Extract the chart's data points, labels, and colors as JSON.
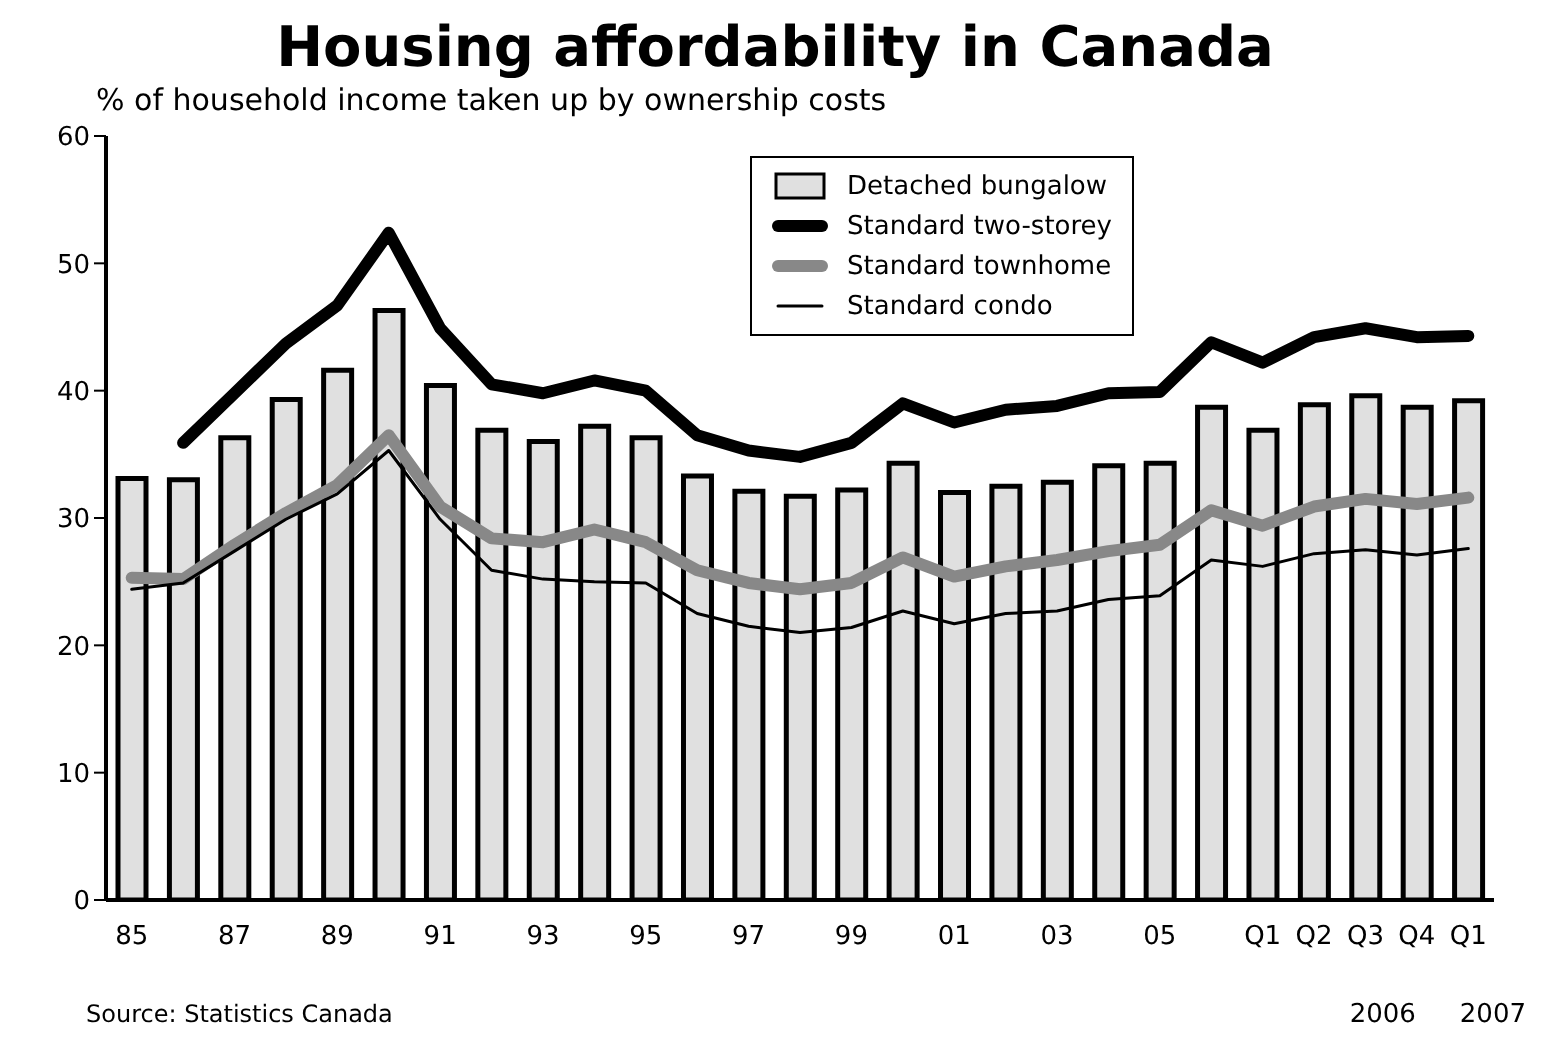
{
  "chart_data": {
    "type": "bar",
    "title": "Housing affordability in Canada",
    "subtitle": "% of household income taken up by ownership costs",
    "categories": [
      "85",
      null,
      "87",
      null,
      "89",
      null,
      "91",
      null,
      "93",
      null,
      "95",
      null,
      "97",
      null,
      "99",
      null,
      "01",
      null,
      "03",
      null,
      "05",
      null,
      "Q1",
      "Q2",
      "Q3",
      "Q4",
      "Q1"
    ],
    "series": [
      {
        "name": "Detached bungalow",
        "color": "#e0e0e0",
        "values": [
          33.1,
          33.0,
          36.3,
          39.3,
          41.6,
          46.3,
          40.4,
          36.9,
          36.0,
          37.2,
          36.3,
          33.3,
          32.1,
          31.7,
          32.2,
          34.3,
          32.0,
          32.5,
          32.8,
          34.1,
          34.3,
          38.7,
          36.9,
          38.9,
          39.6,
          38.7,
          39.2
        ]
      },
      {
        "name": "Standard two-storey",
        "type": "line",
        "color": "#000000",
        "values": [
          null,
          35.9,
          39.8,
          43.7,
          46.7,
          52.4,
          44.9,
          40.5,
          39.8,
          40.8,
          40.0,
          36.5,
          35.3,
          34.8,
          35.9,
          39.0,
          37.5,
          38.5,
          38.8,
          39.8,
          39.9,
          43.8,
          42.2,
          44.2,
          44.9,
          44.2,
          44.3
        ]
      },
      {
        "name": "Standard townhome",
        "type": "line",
        "color": "#888888",
        "values": [
          25.3,
          25.2,
          27.9,
          30.4,
          32.6,
          36.5,
          30.9,
          28.4,
          28.1,
          29.1,
          28.1,
          25.9,
          24.9,
          24.4,
          24.9,
          26.9,
          25.4,
          26.2,
          26.7,
          27.4,
          27.9,
          30.6,
          29.4,
          30.9,
          31.5,
          31.1,
          31.6
        ]
      },
      {
        "name": "Standard condo",
        "type": "line",
        "color": "#000000",
        "values": [
          24.4,
          24.9,
          27.4,
          29.9,
          31.9,
          35.3,
          29.9,
          25.9,
          25.2,
          25.0,
          24.9,
          22.5,
          21.5,
          21.0,
          21.4,
          22.7,
          21.7,
          22.5,
          22.7,
          23.6,
          23.9,
          26.7,
          26.2,
          27.2,
          27.5,
          27.1,
          27.6
        ]
      }
    ],
    "ylim": [
      0,
      60
    ],
    "yticks": [
      0,
      10,
      20,
      30,
      40,
      50,
      60
    ],
    "grid": false,
    "legend": "top right",
    "annotations": [
      "2006",
      "2007",
      "Source: Statistics Canada"
    ]
  }
}
